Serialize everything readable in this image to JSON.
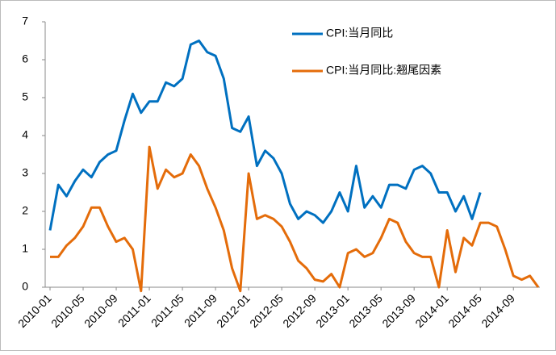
{
  "chart_data": {
    "type": "line",
    "categories": [
      "2010-01",
      null,
      null,
      null,
      "2010-05",
      null,
      null,
      null,
      "2010-09",
      null,
      null,
      null,
      "2011-01",
      null,
      null,
      null,
      "2011-05",
      null,
      null,
      null,
      "2011-09",
      null,
      null,
      null,
      "2012-01",
      null,
      null,
      null,
      "2012-05",
      null,
      null,
      null,
      "2012-09",
      null,
      null,
      null,
      "2013-01",
      null,
      null,
      null,
      "2013-05",
      null,
      null,
      null,
      "2013-09",
      null,
      null,
      null,
      "2014-01",
      null,
      null,
      null,
      "2014-05",
      null,
      null,
      null,
      "2014-09",
      null,
      null,
      null
    ],
    "series": [
      {
        "name": "CPI:当月同比",
        "color": "#0070c0",
        "values": [
          1.5,
          2.7,
          2.4,
          2.8,
          3.1,
          2.9,
          3.3,
          3.5,
          3.6,
          4.4,
          5.1,
          4.6,
          4.9,
          4.9,
          5.4,
          5.3,
          5.5,
          6.4,
          6.5,
          6.2,
          6.1,
          5.5,
          4.2,
          4.1,
          4.5,
          3.2,
          3.6,
          3.4,
          3.0,
          2.2,
          1.8,
          2.0,
          1.9,
          1.7,
          2.0,
          2.5,
          2.0,
          3.2,
          2.1,
          2.4,
          2.1,
          2.7,
          2.7,
          2.6,
          3.1,
          3.2,
          3.0,
          2.5,
          2.5,
          2.0,
          2.4,
          1.8,
          2.5,
          null,
          null,
          null,
          null,
          null,
          null,
          null
        ]
      },
      {
        "name": "CPI:当月同比:翘尾因素",
        "color": "#e46c0a",
        "values": [
          0.8,
          0.8,
          1.1,
          1.3,
          1.6,
          2.1,
          2.1,
          1.6,
          1.2,
          1.3,
          1.0,
          -0.1,
          3.7,
          2.6,
          3.1,
          2.9,
          3.0,
          3.5,
          3.2,
          2.6,
          2.1,
          1.5,
          0.5,
          -0.1,
          3.0,
          1.8,
          1.9,
          1.8,
          1.6,
          1.2,
          0.7,
          0.5,
          0.2,
          0.15,
          0.35,
          0.0,
          0.9,
          1.0,
          0.8,
          0.9,
          1.3,
          1.8,
          1.7,
          1.2,
          0.9,
          0.8,
          0.8,
          0.0,
          1.5,
          0.4,
          1.3,
          1.1,
          1.7,
          1.7,
          1.6,
          1.0,
          0.3,
          0.2,
          0.3,
          0.0
        ]
      }
    ],
    "ylim": [
      0,
      7
    ],
    "yticks": [
      0,
      1,
      2,
      3,
      4,
      5,
      6,
      7
    ],
    "grid": false
  }
}
